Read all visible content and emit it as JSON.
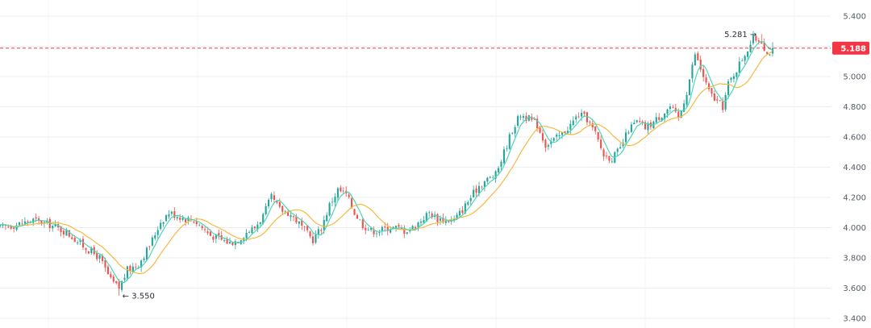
{
  "chart_data": {
    "type": "candlestick",
    "y_axis": {
      "ylim": [
        3.4,
        5.4
      ],
      "ticks": [
        "3.400",
        "3.600",
        "3.800",
        "4.000",
        "4.200",
        "4.400",
        "4.600",
        "4.800",
        "5.000",
        "5.200",
        "5.400"
      ],
      "position": "right"
    },
    "grid": true,
    "current_price": {
      "label": "5.188",
      "value": 5.188,
      "color": "#f23645",
      "line_style": "dashed"
    },
    "annotations": [
      {
        "label": "5.281",
        "value": 5.281,
        "type": "period-high",
        "arrow": "→"
      },
      {
        "label": "3.550",
        "value": 3.55,
        "type": "period-low",
        "arrow": "←"
      }
    ],
    "colors": {
      "up": "#26a69a",
      "down": "#ef5350",
      "fast_ma": "#4ed6b4",
      "slow_ma": "#f5b93e",
      "grid": "#eceef2"
    },
    "close_path": [
      [
        0,
        4.0
      ],
      [
        6,
        4.02
      ],
      [
        12,
        4.05
      ],
      [
        18,
        4.02
      ],
      [
        24,
        3.97
      ],
      [
        30,
        3.88
      ],
      [
        36,
        3.8
      ],
      [
        40,
        3.65
      ],
      [
        43,
        3.6
      ],
      [
        46,
        3.72
      ],
      [
        50,
        3.76
      ],
      [
        54,
        3.88
      ],
      [
        58,
        4.04
      ],
      [
        61,
        4.1
      ],
      [
        64,
        4.08
      ],
      [
        67,
        4.06
      ],
      [
        70,
        4.05
      ],
      [
        73,
        4.0
      ],
      [
        76,
        3.95
      ],
      [
        80,
        3.92
      ],
      [
        83,
        3.9
      ],
      [
        86,
        3.92
      ],
      [
        89,
        3.97
      ],
      [
        92,
        4.0
      ],
      [
        95,
        4.08
      ],
      [
        98,
        4.2
      ],
      [
        101,
        4.12
      ],
      [
        104,
        4.1
      ],
      [
        107,
        4.05
      ],
      [
        110,
        3.98
      ],
      [
        113,
        3.92
      ],
      [
        116,
        4.0
      ],
      [
        119,
        4.15
      ],
      [
        122,
        4.25
      ],
      [
        125,
        4.22
      ],
      [
        128,
        4.1
      ],
      [
        131,
        4.02
      ],
      [
        134,
        3.98
      ],
      [
        137,
        3.98
      ],
      [
        140,
        4.0
      ],
      [
        143,
        4.0
      ],
      [
        146,
        3.98
      ],
      [
        149,
        4.0
      ],
      [
        152,
        4.05
      ],
      [
        155,
        4.1
      ],
      [
        158,
        4.06
      ],
      [
        161,
        4.05
      ],
      [
        164,
        4.05
      ],
      [
        167,
        4.12
      ],
      [
        170,
        4.2
      ],
      [
        173,
        4.28
      ],
      [
        176,
        4.32
      ],
      [
        179,
        4.35
      ],
      [
        182,
        4.5
      ],
      [
        185,
        4.65
      ],
      [
        188,
        4.75
      ],
      [
        191,
        4.72
      ],
      [
        194,
        4.68
      ],
      [
        197,
        4.55
      ],
      [
        200,
        4.58
      ],
      [
        203,
        4.62
      ],
      [
        206,
        4.68
      ],
      [
        209,
        4.75
      ],
      [
        212,
        4.72
      ],
      [
        215,
        4.62
      ],
      [
        218,
        4.48
      ],
      [
        221,
        4.46
      ],
      [
        224,
        4.52
      ],
      [
        227,
        4.65
      ],
      [
        230,
        4.7
      ],
      [
        233,
        4.66
      ],
      [
        236,
        4.7
      ],
      [
        239,
        4.75
      ],
      [
        242,
        4.8
      ],
      [
        245,
        4.72
      ],
      [
        248,
        4.9
      ],
      [
        251,
        5.15
      ],
      [
        253,
        5.05
      ],
      [
        256,
        4.9
      ],
      [
        258,
        4.85
      ],
      [
        261,
        4.8
      ],
      [
        263,
        4.95
      ],
      [
        266,
        5.05
      ],
      [
        269,
        5.15
      ],
      [
        272,
        5.25
      ],
      [
        275,
        5.24
      ],
      [
        277,
        5.15
      ],
      [
        279,
        5.18
      ]
    ]
  }
}
